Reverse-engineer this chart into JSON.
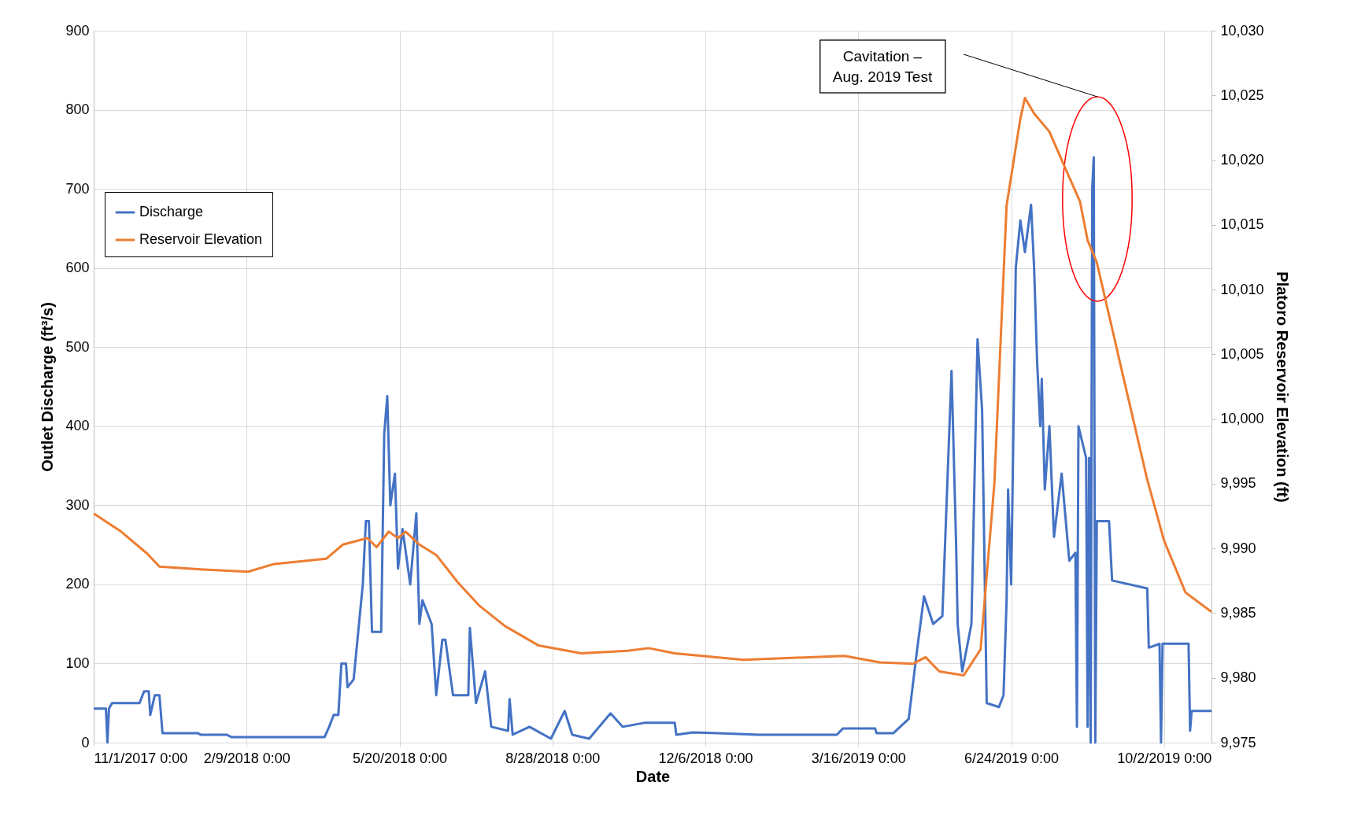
{
  "chart_data": {
    "type": "line",
    "xlabel": "Date",
    "ylabel": "Outlet Discharge (ft³/s)",
    "y2label": "Platoro Reservoir Elevation (ft)",
    "xlim": [
      "2017-11-01",
      "2019-11-02"
    ],
    "xticks": [
      {
        "value": "2017-11-01",
        "label": "11/1/2017 0:00"
      },
      {
        "value": "2018-02-09",
        "label": "2/9/2018 0:00"
      },
      {
        "value": "2018-05-20",
        "label": "5/20/2018 0:00"
      },
      {
        "value": "2018-08-28",
        "label": "8/28/2018 0:00"
      },
      {
        "value": "2018-12-06",
        "label": "12/6/2018 0:00"
      },
      {
        "value": "2019-03-16",
        "label": "3/16/2019 0:00"
      },
      {
        "value": "2019-06-24",
        "label": "6/24/2019 0:00"
      },
      {
        "value": "2019-10-02",
        "label": "10/2/2019 0:00"
      }
    ],
    "ylim": [
      0,
      900
    ],
    "yticks": [
      0,
      100,
      200,
      300,
      400,
      500,
      600,
      700,
      800,
      900
    ],
    "y2lim": [
      9975,
      10030
    ],
    "y2ticks": [
      {
        "value": 9975,
        "label": "9,975"
      },
      {
        "value": 9980,
        "label": "9,980"
      },
      {
        "value": 9985,
        "label": "9,985"
      },
      {
        "value": 9990,
        "label": "9,990"
      },
      {
        "value": 9995,
        "label": "9,995"
      },
      {
        "value": 10000,
        "label": "10,000"
      },
      {
        "value": 10005,
        "label": "10,005"
      },
      {
        "value": 10010,
        "label": "10,010"
      },
      {
        "value": 10015,
        "label": "10,015"
      },
      {
        "value": 10020,
        "label": "10,020"
      },
      {
        "value": 10025,
        "label": "10,025"
      },
      {
        "value": 10030,
        "label": "10,030"
      }
    ],
    "grid": true,
    "legend": "top left",
    "line_style": "solid",
    "annotations": [
      "Cavitation –\nAug. 2019 Test"
    ],
    "series": [
      {
        "name": "Discharge",
        "color": "#4472c4",
        "x": [
          "2017-11-01",
          "2017-11-09",
          "2017-11-10",
          "2017-11-11",
          "2017-11-13",
          "2017-12-01",
          "2017-12-04",
          "2017-12-07",
          "2017-12-08",
          "2017-12-11",
          "2017-12-14",
          "2017-12-16",
          "2018-01-08",
          "2018-01-10",
          "2018-01-27",
          "2018-01-30",
          "2018-04-01",
          "2018-04-04",
          "2018-04-07",
          "2018-04-10",
          "2018-04-12",
          "2018-04-15",
          "2018-04-16",
          "2018-04-20",
          "2018-04-23",
          "2018-04-26",
          "2018-04-28",
          "2018-04-30",
          "2018-05-02",
          "2018-05-08",
          "2018-05-10",
          "2018-05-12",
          "2018-05-14",
          "2018-05-17",
          "2018-05-19",
          "2018-05-22",
          "2018-05-27",
          "2018-05-31",
          "2018-06-02",
          "2018-06-04",
          "2018-06-10",
          "2018-06-13",
          "2018-06-17",
          "2018-06-19",
          "2018-06-24",
          "2018-07-04",
          "2018-07-05",
          "2018-07-09",
          "2018-07-15",
          "2018-07-19",
          "2018-07-30",
          "2018-07-31",
          "2018-08-02",
          "2018-08-13",
          "2018-08-27",
          "2018-09-05",
          "2018-09-10",
          "2018-09-21",
          "2018-10-05",
          "2018-10-13",
          "2018-10-27",
          "2018-11-16",
          "2018-11-17",
          "2018-11-28",
          "2018-12-14",
          "2019-01-10",
          "2019-03-02",
          "2019-03-06",
          "2019-03-27",
          "2019-03-28",
          "2019-04-08",
          "2019-04-18",
          "2019-04-23",
          "2019-04-28",
          "2019-05-04",
          "2019-05-10",
          "2019-05-16",
          "2019-05-19",
          "2019-05-20",
          "2019-05-23",
          "2019-05-29",
          "2019-06-02",
          "2019-06-05",
          "2019-06-08",
          "2019-06-16",
          "2019-06-19",
          "2019-06-21",
          "2019-06-22",
          "2019-06-24",
          "2019-06-27",
          "2019-06-30",
          "2019-07-03",
          "2019-07-07",
          "2019-07-09",
          "2019-07-11",
          "2019-07-13",
          "2019-07-14",
          "2019-07-16",
          "2019-07-19",
          "2019-07-22",
          "2019-07-27",
          "2019-08-01",
          "2019-08-05",
          "2019-08-06",
          "2019-08-07",
          "2019-08-12",
          "2019-08-13",
          "2019-08-14",
          "2019-08-15",
          "2019-08-16",
          "2019-08-17",
          "2019-08-18",
          "2019-08-19",
          "2019-08-27",
          "2019-08-29",
          "2019-09-21",
          "2019-09-22",
          "2019-09-29",
          "2019-09-30",
          "2019-10-01",
          "2019-10-18",
          "2019-10-19",
          "2019-10-20",
          "2019-11-02"
        ],
        "values": [
          43,
          43,
          0,
          43,
          50,
          50,
          65,
          65,
          35,
          60,
          60,
          12,
          12,
          10,
          10,
          7,
          7,
          20,
          35,
          35,
          100,
          100,
          70,
          80,
          140,
          200,
          280,
          280,
          140,
          140,
          390,
          438,
          300,
          340,
          220,
          270,
          200,
          290,
          150,
          180,
          150,
          60,
          130,
          130,
          60,
          60,
          145,
          50,
          90,
          20,
          15,
          55,
          10,
          20,
          5,
          40,
          10,
          5,
          37,
          20,
          25,
          25,
          10,
          13,
          12,
          10,
          10,
          18,
          18,
          12,
          12,
          30,
          110,
          185,
          150,
          160,
          470,
          250,
          150,
          90,
          150,
          510,
          420,
          50,
          45,
          60,
          180,
          320,
          200,
          600,
          660,
          620,
          680,
          600,
          480,
          400,
          460,
          320,
          400,
          260,
          340,
          230,
          240,
          20,
          400,
          360,
          20,
          360,
          0,
          700,
          740,
          0,
          280,
          280,
          205,
          195,
          120,
          125,
          0,
          125,
          125,
          15,
          40,
          40
        ]
      },
      {
        "name": "Reservoir Elevation",
        "color": "#ed7d31",
        "axis": "y2",
        "x": [
          "2017-11-01",
          "2017-11-19",
          "2017-12-06",
          "2017-12-14",
          "2018-01-08",
          "2018-02-10",
          "2018-02-27",
          "2018-04-02",
          "2018-04-13",
          "2018-04-29",
          "2018-05-05",
          "2018-05-13",
          "2018-05-19",
          "2018-05-24",
          "2018-06-02",
          "2018-06-13",
          "2018-06-27",
          "2018-07-11",
          "2018-07-28",
          "2018-08-19",
          "2018-09-16",
          "2018-10-16",
          "2018-10-30",
          "2018-11-16",
          "2018-12-31",
          "2019-03-07",
          "2019-03-30",
          "2019-04-21",
          "2019-04-29",
          "2019-05-08",
          "2019-05-24",
          "2019-06-04",
          "2019-06-13",
          "2019-06-21",
          "2019-06-30",
          "2019-07-03",
          "2019-07-09",
          "2019-07-19",
          "2019-07-30",
          "2019-08-08",
          "2019-08-13",
          "2019-08-19",
          "2019-09-07",
          "2019-09-21",
          "2019-10-02",
          "2019-10-16",
          "2019-11-02"
        ],
        "values": [
          9992.7,
          9991.3,
          9989.6,
          9988.6,
          9988.4,
          9988.2,
          9988.8,
          9989.2,
          9990.3,
          9990.8,
          9990.1,
          9991.3,
          9990.8,
          9991.3,
          9990.3,
          9989.5,
          9987.4,
          9985.6,
          9984.0,
          9982.5,
          9981.9,
          9982.1,
          9982.3,
          9981.9,
          9981.4,
          9981.7,
          9981.2,
          9981.1,
          9981.6,
          9980.5,
          9980.2,
          9982.2,
          9995.0,
          10016.5,
          10023.2,
          10024.8,
          10023.6,
          10022.2,
          10019.2,
          10016.8,
          10013.8,
          10012.1,
          10002.4,
          9995.3,
          9990.6,
          9986.6,
          9985.1
        ]
      }
    ]
  }
}
